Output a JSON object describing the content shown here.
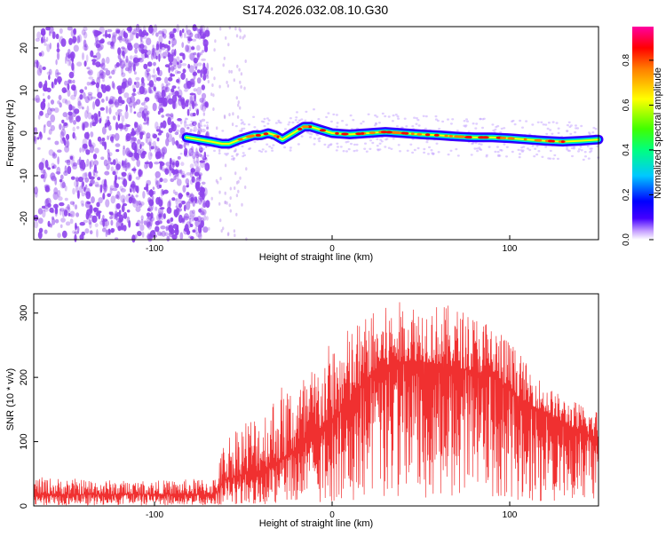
{
  "title": "S174.2026.032.08.10.G30",
  "colors": {
    "spectrogram_noise": "#8e44ec",
    "snr_line": "#f03030",
    "frame": "#000000",
    "colorbar": [
      "#ffffff",
      "#c6a0ff",
      "#4400ff",
      "#0000ff",
      "#00c8ff",
      "#00ff80",
      "#40ff00",
      "#ffff00",
      "#ff8000",
      "#ff0000",
      "#ff00a0"
    ]
  },
  "chart_data": [
    {
      "type": "heatmap",
      "name": "spectrogram",
      "xlabel": "Height of straight line (km)",
      "ylabel": "Frequency (Hz)",
      "xlim": [
        -168,
        150
      ],
      "ylim": [
        -25,
        25
      ],
      "xticks": [
        -100,
        0,
        100
      ],
      "xtick_labels": [
        "-100",
        "0",
        "100"
      ],
      "yticks": [
        -20,
        -10,
        0,
        10,
        20
      ],
      "ytick_labels": [
        "-20",
        "-10",
        "0",
        "10",
        "20"
      ],
      "colorbar": {
        "label": "Normalized spectral amplitude",
        "range": [
          0,
          0.95
        ],
        "ticks": [
          0.0,
          0.2,
          0.4,
          0.6,
          0.8
        ],
        "tick_labels": [
          "0.0",
          "0.2",
          "0.4",
          "0.6",
          "0.8"
        ]
      },
      "noise_region_x": [
        -168,
        -70
      ],
      "signal_track": {
        "x": [
          -82,
          -75,
          -68,
          -62,
          -58,
          -52,
          -48,
          -44,
          -40,
          -36,
          -32,
          -28,
          -24,
          -20,
          -16,
          -12,
          -8,
          -4,
          0,
          10,
          20,
          30,
          40,
          50,
          60,
          70,
          80,
          90,
          100,
          110,
          120,
          130,
          140,
          150
        ],
        "freq": [
          -1.0,
          -1.5,
          -2.0,
          -2.5,
          -2.5,
          -1.5,
          -1.0,
          -0.5,
          -0.5,
          0.0,
          -0.5,
          -1.5,
          -0.5,
          0.5,
          1.5,
          1.5,
          1.0,
          0.5,
          0.0,
          -0.3,
          0.0,
          0.3,
          0.0,
          -0.3,
          -0.5,
          -0.8,
          -1.0,
          -1.0,
          -1.2,
          -1.5,
          -1.8,
          -2.0,
          -1.8,
          -1.5
        ]
      }
    },
    {
      "type": "line",
      "name": "snr",
      "xlabel": "Height of straight line (km)",
      "ylabel": "SNR (10 * v/v)",
      "xlim": [
        -168,
        150
      ],
      "ylim": [
        0,
        330
      ],
      "xticks": [
        -100,
        0,
        100
      ],
      "xtick_labels": [
        "-100",
        "0",
        "100"
      ],
      "yticks": [
        0,
        100,
        200,
        300
      ],
      "ytick_labels": [
        "0",
        "100",
        "200",
        "300"
      ],
      "envelope": {
        "x": [
          -168,
          -120,
          -90,
          -66,
          -60,
          -50,
          -40,
          -30,
          -20,
          -10,
          0,
          10,
          20,
          30,
          40,
          50,
          60,
          70,
          80,
          90,
          100,
          110,
          120,
          130,
          140,
          150
        ],
        "median": [
          18,
          18,
          18,
          18,
          40,
          50,
          55,
          70,
          85,
          110,
          135,
          160,
          200,
          215,
          225,
          225,
          220,
          215,
          210,
          200,
          180,
          160,
          145,
          130,
          115,
          105
        ],
        "upper": [
          45,
          40,
          40,
          45,
          110,
          140,
          150,
          190,
          200,
          220,
          260,
          280,
          300,
          310,
          320,
          320,
          315,
          310,
          300,
          290,
          260,
          220,
          190,
          170,
          160,
          150
        ]
      }
    }
  ]
}
